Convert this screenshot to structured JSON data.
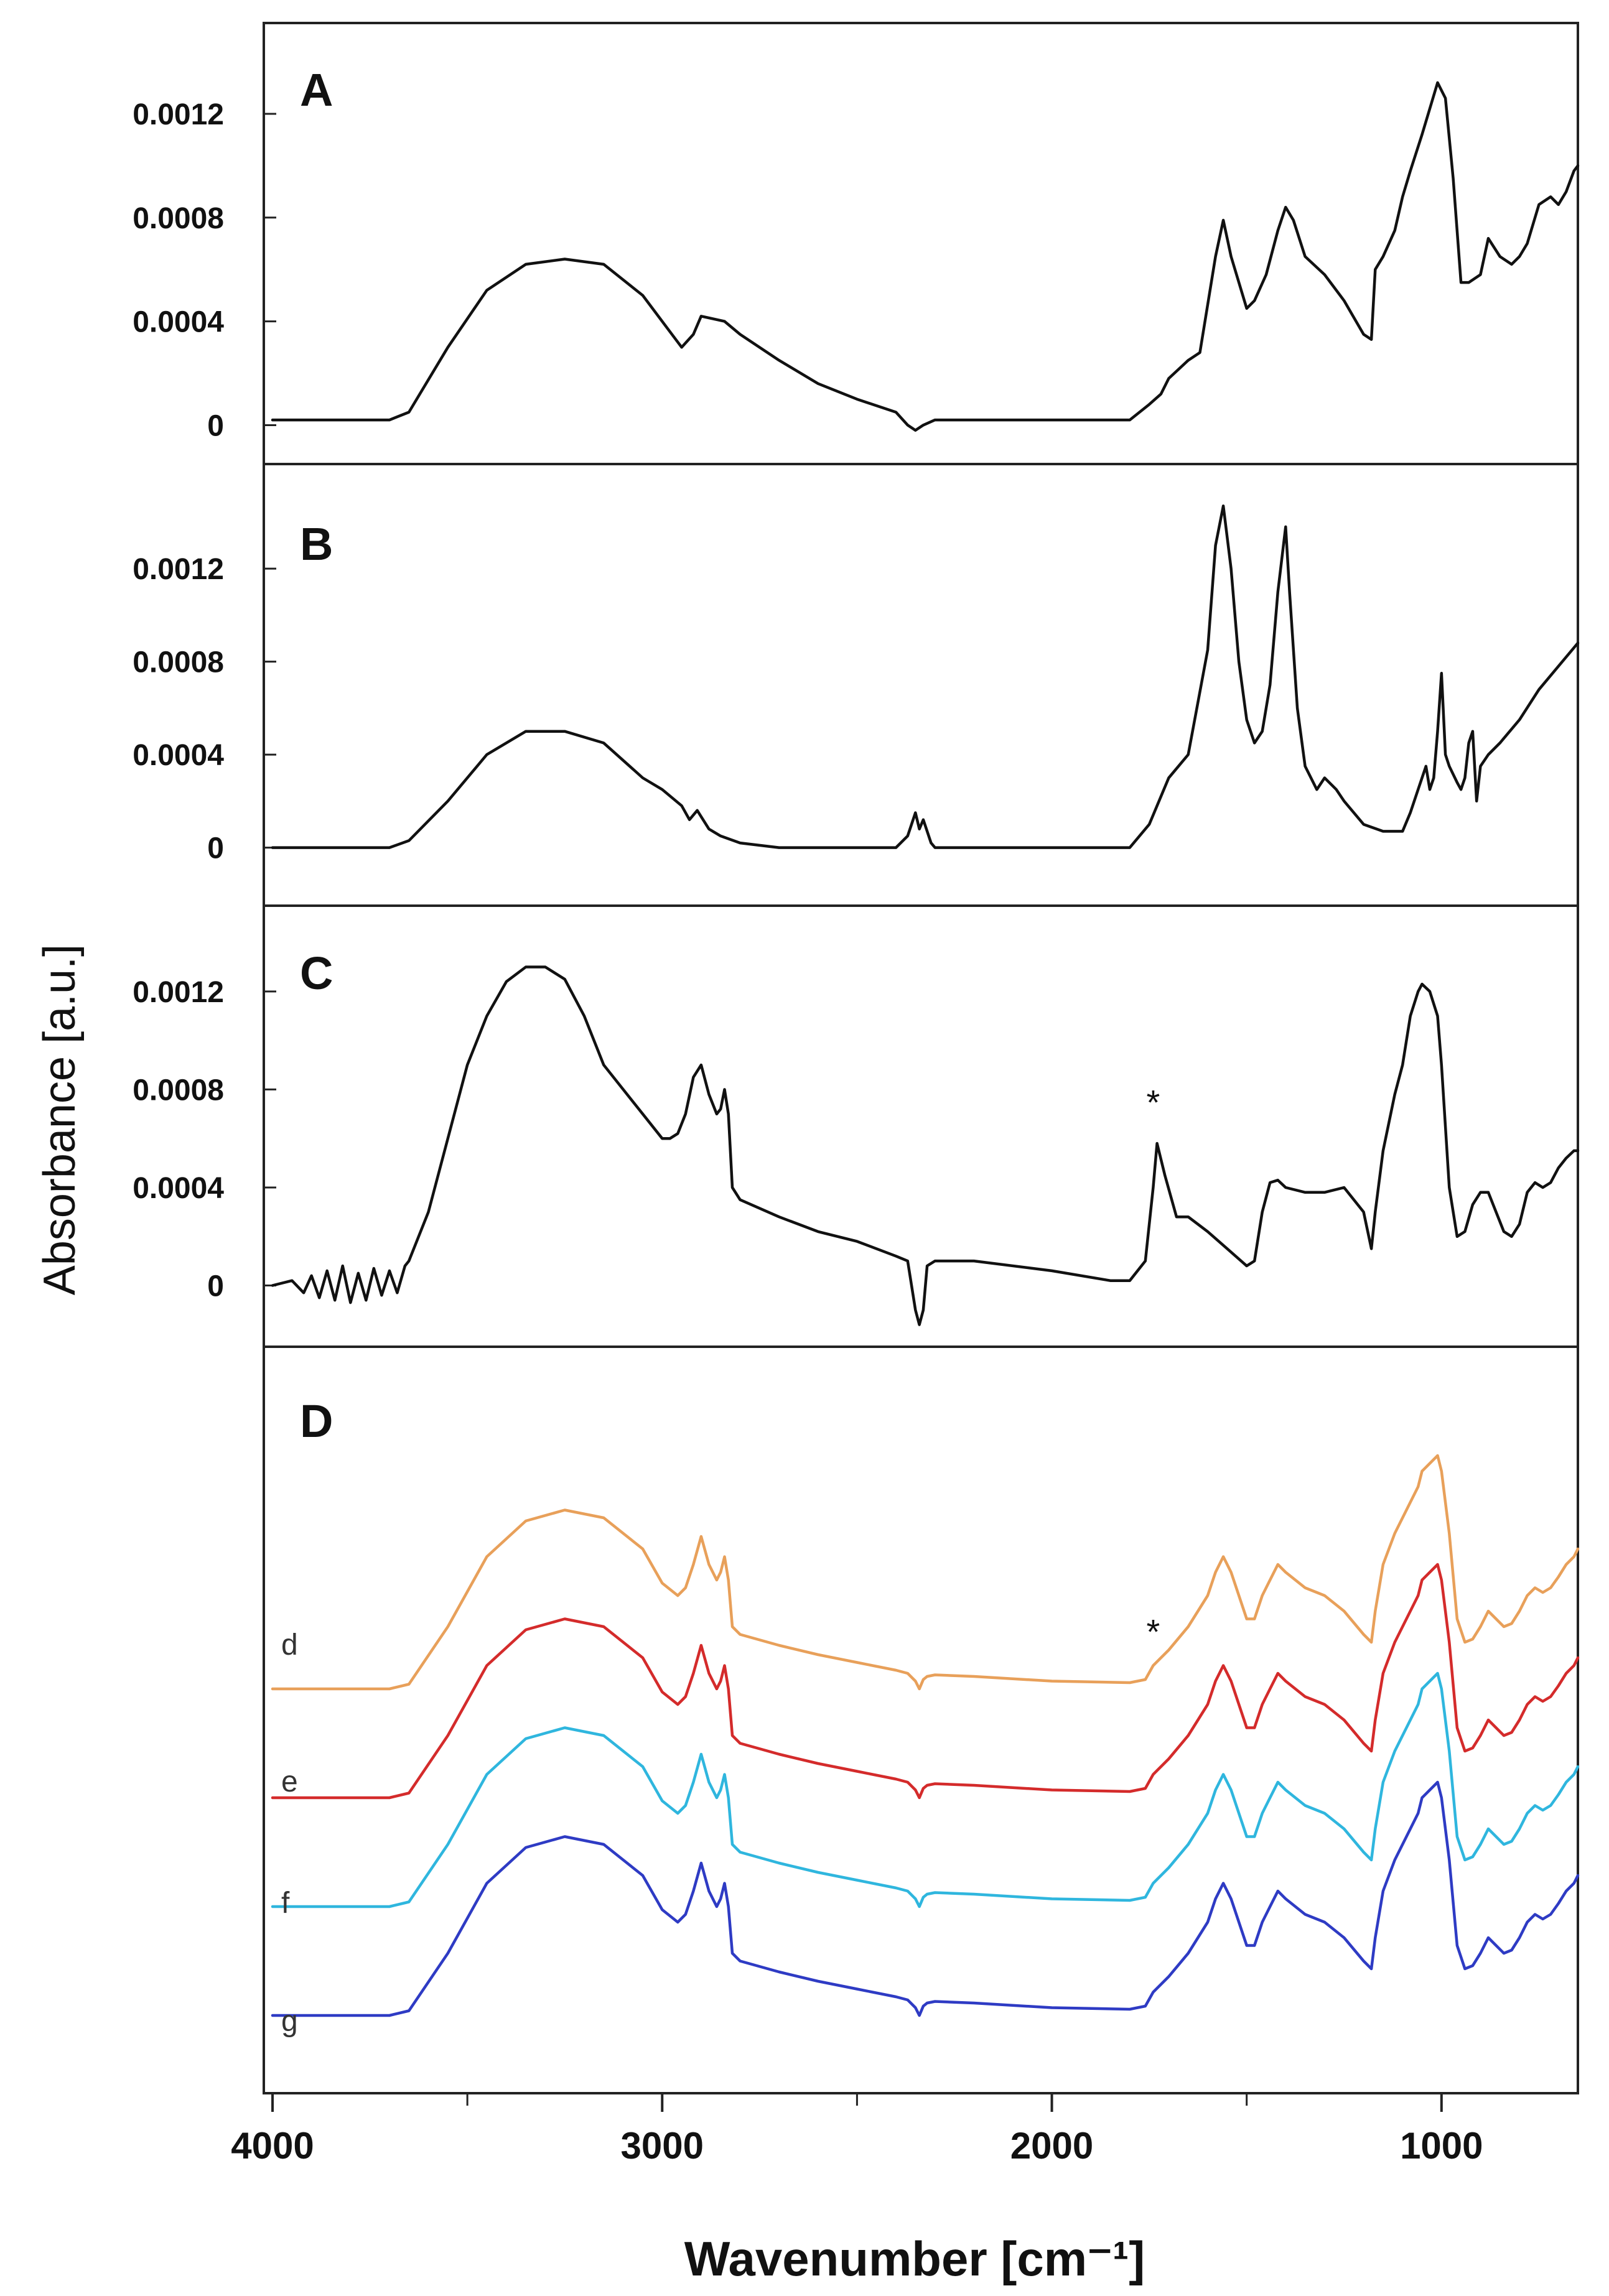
{
  "chart_data": {
    "type": "line",
    "xlabel": "Wavenumber [cm⁻¹]",
    "ylabel": "Absorbance [a.u.]",
    "xlim": [
      4000,
      650
    ],
    "xticks": [
      "4000",
      "3000",
      "2000",
      "1000"
    ],
    "panels": [
      {
        "id": "A",
        "label": "A",
        "ylim": [
          -0.00015,
          0.00155
        ],
        "yticks": [
          "0",
          "0.0004",
          "0.0008",
          "0.0012"
        ],
        "yticks_values": [
          0,
          0.0004,
          0.0008,
          0.0012
        ],
        "series": [
          {
            "name": "A",
            "color": "#111111",
            "x": [
              4000,
              3700,
              3650,
              3550,
              3450,
              3350,
              3250,
              3150,
              3050,
              2980,
              2950,
              2920,
              2900,
              2870,
              2840,
              2800,
              2700,
              2600,
              2500,
              2400,
              2370,
              2350,
              2330,
              2300,
              2200,
              2000,
              1800,
              1750,
              1720,
              1700,
              1650,
              1620,
              1580,
              1560,
              1540,
              1500,
              1480,
              1450,
              1420,
              1400,
              1380,
              1350,
              1300,
              1250,
              1200,
              1180,
              1170,
              1150,
              1120,
              1100,
              1080,
              1050,
              1030,
              1010,
              990,
              970,
              950,
              930,
              900,
              880,
              850,
              820,
              800,
              780,
              750,
              720,
              700,
              680,
              660,
              650
            ],
            "y": [
              2e-05,
              2e-05,
              5e-05,
              0.0003,
              0.00052,
              0.00062,
              0.00064,
              0.00062,
              0.0005,
              0.00036,
              0.0003,
              0.00035,
              0.00042,
              0.00041,
              0.0004,
              0.00035,
              0.00025,
              0.00016,
              0.0001,
              5e-05,
              0.0,
              -2e-05,
              0.0,
              2e-05,
              2e-05,
              2e-05,
              2e-05,
              8e-05,
              0.00012,
              0.00018,
              0.00025,
              0.00028,
              0.00065,
              0.00079,
              0.00065,
              0.00045,
              0.00048,
              0.00058,
              0.00075,
              0.00084,
              0.00079,
              0.00065,
              0.00058,
              0.00048,
              0.00035,
              0.00033,
              0.0006,
              0.00065,
              0.00075,
              0.00088,
              0.00098,
              0.00112,
              0.00122,
              0.00132,
              0.00126,
              0.00095,
              0.00055,
              0.00055,
              0.00058,
              0.00072,
              0.00065,
              0.00062,
              0.00065,
              0.0007,
              0.00085,
              0.00088,
              0.00085,
              0.0009,
              0.00098,
              0.001
            ]
          }
        ]
      },
      {
        "id": "B",
        "label": "B",
        "ylim": [
          -0.00025,
          0.00165
        ],
        "yticks": [
          "0",
          "0.0004",
          "0.0008",
          "0.0012"
        ],
        "yticks_values": [
          0,
          0.0004,
          0.0008,
          0.0012
        ],
        "series": [
          {
            "name": "B",
            "color": "#111111",
            "x": [
              4000,
              3700,
              3650,
              3550,
              3450,
              3350,
              3250,
              3150,
              3050,
              3000,
              2950,
              2930,
              2910,
              2880,
              2850,
              2800,
              2700,
              2500,
              2400,
              2370,
              2350,
              2340,
              2330,
              2310,
              2300,
              2200,
              2000,
              1800,
              1750,
              1700,
              1650,
              1600,
              1580,
              1560,
              1540,
              1520,
              1500,
              1480,
              1460,
              1440,
              1420,
              1400,
              1390,
              1370,
              1350,
              1320,
              1300,
              1270,
              1250,
              1200,
              1150,
              1100,
              1080,
              1060,
              1050,
              1040,
              1030,
              1020,
              1010,
              1000,
              990,
              980,
              960,
              950,
              940,
              930,
              920,
              910,
              900,
              880,
              850,
              800,
              750,
              700,
              650
            ],
            "y": [
              0.0,
              0.0,
              3e-05,
              0.0002,
              0.0004,
              0.0005,
              0.0005,
              0.00045,
              0.0003,
              0.00025,
              0.00018,
              0.00012,
              0.00016,
              8e-05,
              5e-05,
              2e-05,
              0.0,
              0.0,
              0.0,
              5e-05,
              0.00015,
              8e-05,
              0.00012,
              2e-05,
              0.0,
              0.0,
              0.0,
              0.0,
              0.0001,
              0.0003,
              0.0004,
              0.00085,
              0.0013,
              0.00147,
              0.0012,
              0.0008,
              0.00055,
              0.00045,
              0.0005,
              0.0007,
              0.0011,
              0.00138,
              0.0011,
              0.0006,
              0.00035,
              0.00025,
              0.0003,
              0.00025,
              0.0002,
              0.0001,
              7e-05,
              7e-05,
              0.00015,
              0.00025,
              0.0003,
              0.00035,
              0.00025,
              0.0003,
              0.0005,
              0.00075,
              0.0004,
              0.00035,
              0.00028,
              0.00025,
              0.0003,
              0.00045,
              0.0005,
              0.0002,
              0.00035,
              0.0004,
              0.00045,
              0.00055,
              0.00068,
              0.00078,
              0.00088
            ]
          }
        ]
      },
      {
        "id": "C",
        "label": "C",
        "ylim": [
          -0.00025,
          0.00155
        ],
        "yticks": [
          "0",
          "0.0004",
          "0.0008",
          "0.0012"
        ],
        "yticks_values": [
          0,
          0.0004,
          0.0008,
          0.0012
        ],
        "annotation": "*",
        "annotation_x": 1740,
        "series": [
          {
            "name": "C",
            "color": "#111111",
            "x": [
              4000,
              3950,
              3920,
              3900,
              3880,
              3860,
              3840,
              3820,
              3800,
              3780,
              3760,
              3740,
              3720,
              3700,
              3680,
              3660,
              3650,
              3600,
              3550,
              3500,
              3450,
              3400,
              3350,
              3300,
              3250,
              3200,
              3150,
              3100,
              3050,
              3000,
              2980,
              2960,
              2940,
              2920,
              2900,
              2880,
              2860,
              2850,
              2840,
              2830,
              2820,
              2800,
              2700,
              2600,
              2500,
              2400,
              2370,
              2350,
              2340,
              2330,
              2320,
              2300,
              2200,
              2000,
              1850,
              1800,
              1760,
              1740,
              1730,
              1710,
              1680,
              1650,
              1600,
              1550,
              1500,
              1480,
              1460,
              1440,
              1420,
              1400,
              1350,
              1300,
              1250,
              1200,
              1180,
              1170,
              1150,
              1120,
              1100,
              1080,
              1060,
              1050,
              1030,
              1010,
              1000,
              980,
              960,
              940,
              920,
              900,
              880,
              860,
              840,
              820,
              800,
              780,
              760,
              740,
              720,
              700,
              680,
              660,
              650
            ],
            "y": [
              0.0,
              2e-05,
              -3e-05,
              4e-05,
              -5e-05,
              6e-05,
              -6e-05,
              8e-05,
              -7e-05,
              5e-05,
              -6e-05,
              7e-05,
              -4e-05,
              6e-05,
              -3e-05,
              8e-05,
              0.0001,
              0.0003,
              0.0006,
              0.0009,
              0.0011,
              0.00124,
              0.0013,
              0.0013,
              0.00125,
              0.0011,
              0.0009,
              0.0008,
              0.0007,
              0.0006,
              0.0006,
              0.00062,
              0.0007,
              0.00085,
              0.0009,
              0.00078,
              0.0007,
              0.00072,
              0.0008,
              0.0007,
              0.0004,
              0.00035,
              0.00028,
              0.00022,
              0.00018,
              0.00012,
              0.0001,
              -0.0001,
              -0.00016,
              -0.0001,
              8e-05,
              0.0001,
              0.0001,
              6e-05,
              2e-05,
              2e-05,
              0.0001,
              0.0004,
              0.00058,
              0.00045,
              0.00028,
              0.00028,
              0.00022,
              0.00015,
              8e-05,
              0.0001,
              0.0003,
              0.00042,
              0.00043,
              0.0004,
              0.00038,
              0.00038,
              0.0004,
              0.0003,
              0.00015,
              0.0003,
              0.00055,
              0.00078,
              0.0009,
              0.0011,
              0.0012,
              0.00123,
              0.0012,
              0.0011,
              0.0009,
              0.0004,
              0.0002,
              0.00022,
              0.00033,
              0.00038,
              0.00038,
              0.0003,
              0.00022,
              0.0002,
              0.00025,
              0.00038,
              0.00042,
              0.0004,
              0.00042,
              0.00048,
              0.00052,
              0.00055,
              0.00055
            ]
          }
        ]
      },
      {
        "id": "D",
        "label": "D",
        "ylim": [
          -0.5,
          4.3
        ],
        "yticks": [],
        "annotation": "*",
        "annotation_x": 1740,
        "series": [
          {
            "name": "d",
            "color": "#e8a05a",
            "offset": 2.1
          },
          {
            "name": "e",
            "color": "#d42b2b",
            "offset": 1.4
          },
          {
            "name": "f",
            "color": "#2fb6de",
            "offset": 0.7
          },
          {
            "name": "g",
            "color": "#2e3bc4",
            "offset": 0.0
          }
        ],
        "shape_x": [
          4000,
          3700,
          3650,
          3550,
          3450,
          3350,
          3250,
          3150,
          3050,
          3000,
          2960,
          2940,
          2920,
          2900,
          2880,
          2860,
          2850,
          2840,
          2830,
          2820,
          2800,
          2700,
          2600,
          2500,
          2400,
          2370,
          2350,
          2340,
          2330,
          2320,
          2300,
          2200,
          2000,
          1800,
          1760,
          1740,
          1720,
          1700,
          1650,
          1600,
          1580,
          1560,
          1540,
          1500,
          1480,
          1460,
          1440,
          1420,
          1400,
          1350,
          1300,
          1250,
          1200,
          1180,
          1170,
          1150,
          1120,
          1100,
          1080,
          1060,
          1050,
          1030,
          1010,
          1000,
          980,
          960,
          940,
          920,
          900,
          880,
          860,
          840,
          820,
          800,
          780,
          760,
          740,
          720,
          700,
          680,
          660,
          650
        ],
        "shape_y": [
          0.0,
          0.0,
          0.03,
          0.4,
          0.85,
          1.08,
          1.15,
          1.1,
          0.9,
          0.68,
          0.6,
          0.65,
          0.8,
          0.98,
          0.8,
          0.7,
          0.75,
          0.85,
          0.7,
          0.4,
          0.35,
          0.28,
          0.22,
          0.17,
          0.12,
          0.1,
          0.05,
          0.0,
          0.06,
          0.08,
          0.09,
          0.08,
          0.05,
          0.04,
          0.06,
          0.15,
          0.2,
          0.25,
          0.4,
          0.6,
          0.75,
          0.85,
          0.75,
          0.45,
          0.45,
          0.6,
          0.7,
          0.8,
          0.75,
          0.65,
          0.6,
          0.5,
          0.35,
          0.3,
          0.5,
          0.8,
          1.0,
          1.1,
          1.2,
          1.3,
          1.4,
          1.45,
          1.5,
          1.4,
          1.0,
          0.45,
          0.3,
          0.32,
          0.4,
          0.5,
          0.45,
          0.4,
          0.42,
          0.5,
          0.6,
          0.65,
          0.62,
          0.65,
          0.72,
          0.8,
          0.85,
          0.9
        ]
      }
    ]
  }
}
